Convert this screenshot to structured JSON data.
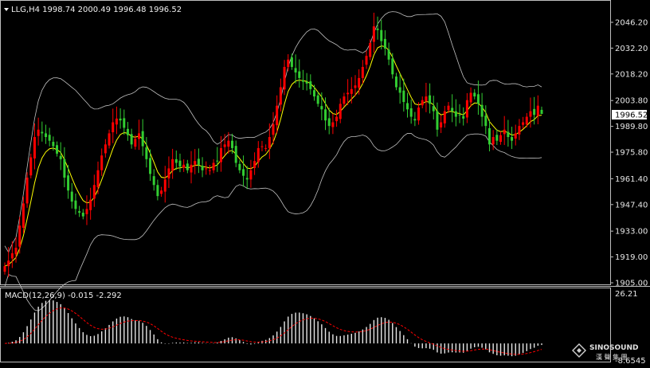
{
  "header": {
    "symbol_line": "LLG,H4  1998.74 2000.49 1996.48 1996.52"
  },
  "price_axis": {
    "ticks": [
      "2046.20",
      "2032.20",
      "2018.20",
      "2003.80",
      "1989.80",
      "1975.80",
      "1961.40",
      "1947.40",
      "1933.00",
      "1919.00",
      "1905.00"
    ],
    "current_price": "1996.52"
  },
  "macd": {
    "label": "MACD(12,26,9) -0.015 -2.292",
    "top_value": "26.21",
    "bottom_value": "-8.6545"
  },
  "watermark": {
    "name": "SINOSOUND",
    "sub": "漢 聲 集 團"
  },
  "colors": {
    "bull": "#ff0000",
    "bear": "#32cd32",
    "ma": "#ffff00",
    "bands": "#c0c0c0",
    "signal": "#ff0000"
  },
  "chart_data": [
    {
      "type": "candlestick",
      "title": "LLG,H4",
      "ohlc_last": {
        "open": 1998.74,
        "high": 2000.49,
        "low": 1996.48,
        "close": 1996.52
      },
      "ylim": [
        1905.0,
        2052.0
      ],
      "y_ticks": [
        2046.2,
        2032.2,
        2018.2,
        2003.8,
        1989.8,
        1975.8,
        1961.4,
        1947.4,
        1933.0,
        1919.0,
        1905.0
      ],
      "closes": [
        1914,
        1917,
        1921,
        1924,
        1936,
        1948,
        1962,
        1973,
        1984,
        1988,
        1986,
        1984,
        1982,
        1979,
        1975,
        1972,
        1962,
        1955,
        1949,
        1945,
        1943,
        1941,
        1945,
        1950,
        1958,
        1966,
        1974,
        1980,
        1986,
        1992,
        1994,
        1993,
        1989,
        1985,
        1980,
        1983,
        1986,
        1979,
        1972,
        1964,
        1958,
        1952,
        1955,
        1961,
        1967,
        1972,
        1970,
        1968,
        1969,
        1966,
        1969,
        1971,
        1969,
        1966,
        1967,
        1966,
        1970,
        1971,
        1978,
        1980,
        1982,
        1978,
        1970,
        1966,
        1963,
        1961,
        1966,
        1971,
        1978,
        1979,
        1978,
        1984,
        1991,
        2001,
        2011,
        2022,
        2026,
        2022,
        2019,
        2016,
        2014,
        2013,
        2010,
        2006,
        2002,
        1999,
        1993,
        1990,
        1992,
        1995,
        2002,
        2006,
        2008,
        2010,
        2012,
        2016,
        2022,
        2028,
        2035,
        2044,
        2042,
        2036,
        2032,
        2026,
        2018,
        2011,
        2008,
        2003,
        1999,
        1995,
        1993,
        2000,
        2004,
        2006,
        2002,
        1998,
        1988,
        1992,
        1998,
        2001,
        1998,
        1995,
        1996,
        1994,
        2004,
        2008,
        2006,
        2002,
        1995,
        1990,
        1980,
        1984,
        1982,
        1985,
        1988,
        1984,
        1982,
        1986,
        1990,
        1992,
        1995,
        1998,
        1996,
        2001,
        1997
      ]
    },
    {
      "type": "bar",
      "title": "MACD(12,26,9)",
      "macd": -0.015,
      "signal": -2.292,
      "ylim": [
        -8.6545,
        26.21
      ]
    }
  ]
}
